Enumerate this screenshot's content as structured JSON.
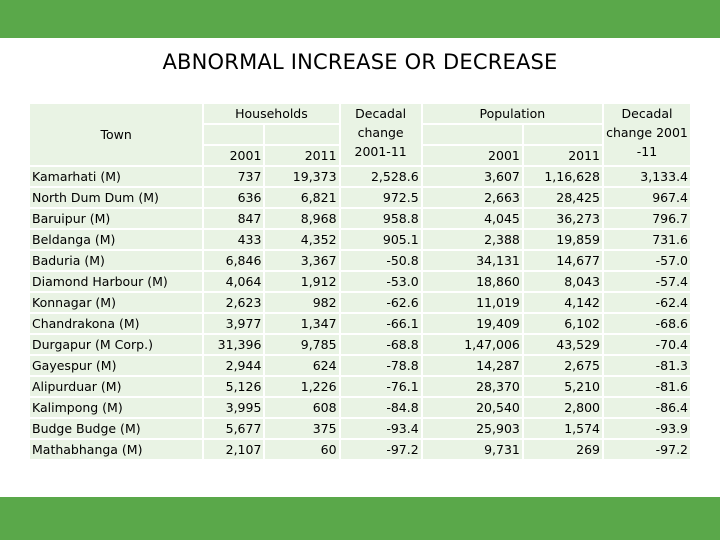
{
  "title": "ABNORMAL INCREASE OR DECREASE",
  "header": {
    "town": "Town",
    "households": "Households",
    "hh_decadal_line1": "Decadal",
    "hh_decadal_line2": "change",
    "hh_decadal_line3": "2001-11",
    "population": "Population",
    "pop_decadal_line1": "Decadal",
    "pop_decadal_line2": "change 2001",
    "pop_decadal_line3": "-11",
    "year_2001": "2001",
    "year_2011": "2011"
  },
  "rows": [
    {
      "town": "Kamarhati (M)",
      "hh2001": "737",
      "hh2011": "19,373",
      "hhchg": "2,528.6",
      "pop2001": "3,607",
      "pop2011": "1,16,628",
      "popchg": "3,133.4"
    },
    {
      "town": "North Dum Dum (M)",
      "hh2001": "636",
      "hh2011": "6,821",
      "hhchg": "972.5",
      "pop2001": "2,663",
      "pop2011": "28,425",
      "popchg": "967.4"
    },
    {
      "town": "Baruipur (M)",
      "hh2001": "847",
      "hh2011": "8,968",
      "hhchg": "958.8",
      "pop2001": "4,045",
      "pop2011": "36,273",
      "popchg": "796.7"
    },
    {
      "town": "Beldanga (M)",
      "hh2001": "433",
      "hh2011": "4,352",
      "hhchg": "905.1",
      "pop2001": "2,388",
      "pop2011": "19,859",
      "popchg": "731.6"
    },
    {
      "town": "Baduria (M)",
      "hh2001": "6,846",
      "hh2011": "3,367",
      "hhchg": "-50.8",
      "pop2001": "34,131",
      "pop2011": "14,677",
      "popchg": "-57.0"
    },
    {
      "town": "Diamond Harbour (M)",
      "hh2001": "4,064",
      "hh2011": "1,912",
      "hhchg": "-53.0",
      "pop2001": "18,860",
      "pop2011": "8,043",
      "popchg": "-57.4"
    },
    {
      "town": "Konnagar (M)",
      "hh2001": "2,623",
      "hh2011": "982",
      "hhchg": "-62.6",
      "pop2001": "11,019",
      "pop2011": "4,142",
      "popchg": "-62.4"
    },
    {
      "town": "Chandrakona (M)",
      "hh2001": "3,977",
      "hh2011": "1,347",
      "hhchg": "-66.1",
      "pop2001": "19,409",
      "pop2011": "6,102",
      "popchg": "-68.6"
    },
    {
      "town": "Durgapur (M Corp.)",
      "hh2001": "31,396",
      "hh2011": "9,785",
      "hhchg": "-68.8",
      "pop2001": "1,47,006",
      "pop2011": "43,529",
      "popchg": "-70.4"
    },
    {
      "town": "Gayespur (M)",
      "hh2001": "2,944",
      "hh2011": "624",
      "hhchg": "-78.8",
      "pop2001": "14,287",
      "pop2011": "2,675",
      "popchg": "-81.3"
    },
    {
      "town": "Alipurduar (M)",
      "hh2001": "5,126",
      "hh2011": "1,226",
      "hhchg": "-76.1",
      "pop2001": "28,370",
      "pop2011": "5,210",
      "popchg": "-81.6"
    },
    {
      "town": "Kalimpong (M)",
      "hh2001": "3,995",
      "hh2011": "608",
      "hhchg": "-84.8",
      "pop2001": "20,540",
      "pop2011": "2,800",
      "popchg": "-86.4"
    },
    {
      "town": "Budge Budge (M)",
      "hh2001": "5,677",
      "hh2011": "375",
      "hhchg": "-93.4",
      "pop2001": "25,903",
      "pop2011": "1,574",
      "popchg": "-93.9"
    },
    {
      "town": "Mathabhanga (M)",
      "hh2001": "2,107",
      "hh2011": "60",
      "hhchg": "-97.2",
      "pop2001": "9,731",
      "pop2011": "269",
      "popchg": "-97.2"
    }
  ]
}
